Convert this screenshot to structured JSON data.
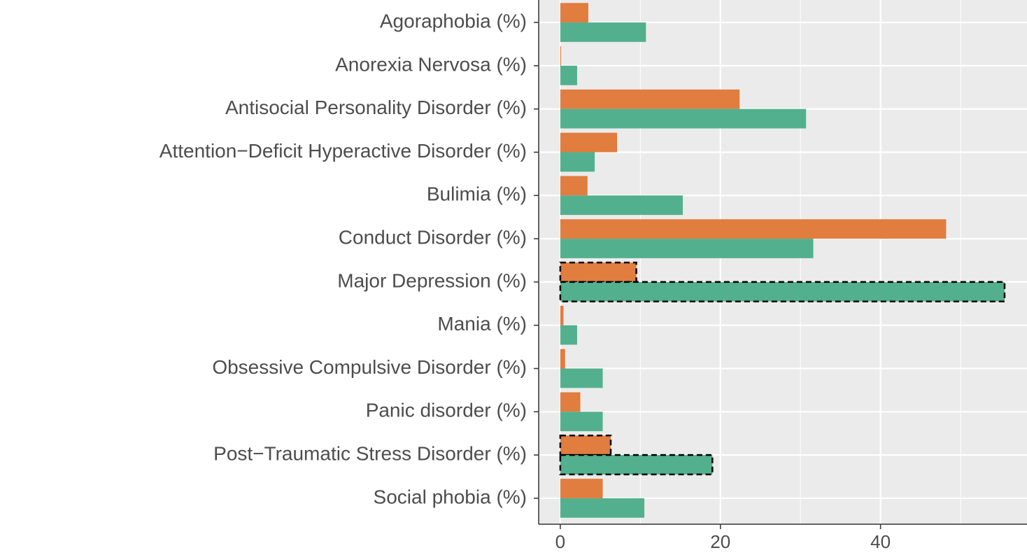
{
  "chart_data": {
    "type": "bar",
    "orientation": "horizontal",
    "categories": [
      "Agoraphobia (%)",
      "Anorexia Nervosa (%)",
      "Antisocial Personality Disorder (%)",
      "Attention−Deficit Hyperactive Disorder (%)",
      "Bulimia (%)",
      "Conduct Disorder (%)",
      "Major Depression (%)",
      "Mania (%)",
      "Obsessive Compulsive Disorder (%)",
      "Panic disorder (%)",
      "Post−Traumatic Stress Disorder (%)",
      "Social phobia (%)"
    ],
    "series": [
      {
        "color": "#e07d3f",
        "values": [
          3.5,
          0.1,
          22.4,
          7.1,
          3.4,
          48.2,
          9.5,
          0.4,
          0.6,
          2.5,
          6.3,
          5.3
        ]
      },
      {
        "color": "#52b08e",
        "values": [
          10.7,
          2.1,
          30.7,
          4.3,
          15.3,
          31.6,
          55.5,
          2.1,
          5.3,
          5.3,
          19.0,
          10.5
        ]
      }
    ],
    "outlined": [
      false,
      false,
      false,
      false,
      false,
      false,
      true,
      false,
      false,
      false,
      true,
      false
    ],
    "xlim": [
      -2.7,
      58.3
    ],
    "xticks": [
      0,
      20,
      40
    ],
    "grid": true
  }
}
